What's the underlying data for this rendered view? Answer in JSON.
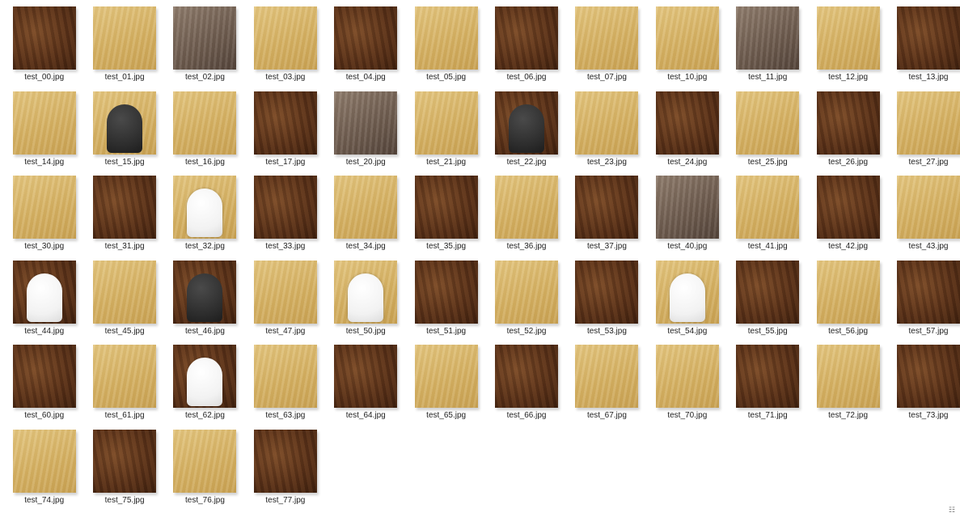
{
  "files": [
    {
      "name": "test_00.jpg",
      "tone": "dark"
    },
    {
      "name": "test_01.jpg",
      "tone": "light"
    },
    {
      "name": "test_02.jpg",
      "tone": "grey"
    },
    {
      "name": "test_03.jpg",
      "tone": "light"
    },
    {
      "name": "test_04.jpg",
      "tone": "dark"
    },
    {
      "name": "test_05.jpg",
      "tone": "light"
    },
    {
      "name": "test_06.jpg",
      "tone": "dark"
    },
    {
      "name": "test_07.jpg",
      "tone": "light"
    },
    {
      "name": "test_10.jpg",
      "tone": "light"
    },
    {
      "name": "test_11.jpg",
      "tone": "grey"
    },
    {
      "name": "test_12.jpg",
      "tone": "light"
    },
    {
      "name": "test_13.jpg",
      "tone": "dark"
    },
    {
      "name": "test_14.jpg",
      "tone": "light"
    },
    {
      "name": "test_15.jpg",
      "tone": "light",
      "piece": "black"
    },
    {
      "name": "test_16.jpg",
      "tone": "light"
    },
    {
      "name": "test_17.jpg",
      "tone": "dark"
    },
    {
      "name": "test_20.jpg",
      "tone": "grey"
    },
    {
      "name": "test_21.jpg",
      "tone": "light"
    },
    {
      "name": "test_22.jpg",
      "tone": "dark",
      "piece": "black"
    },
    {
      "name": "test_23.jpg",
      "tone": "light"
    },
    {
      "name": "test_24.jpg",
      "tone": "dark"
    },
    {
      "name": "test_25.jpg",
      "tone": "light"
    },
    {
      "name": "test_26.jpg",
      "tone": "dark"
    },
    {
      "name": "test_27.jpg",
      "tone": "light"
    },
    {
      "name": "test_30.jpg",
      "tone": "light"
    },
    {
      "name": "test_31.jpg",
      "tone": "dark"
    },
    {
      "name": "test_32.jpg",
      "tone": "light",
      "piece": "white"
    },
    {
      "name": "test_33.jpg",
      "tone": "dark"
    },
    {
      "name": "test_34.jpg",
      "tone": "light"
    },
    {
      "name": "test_35.jpg",
      "tone": "dark"
    },
    {
      "name": "test_36.jpg",
      "tone": "light"
    },
    {
      "name": "test_37.jpg",
      "tone": "dark"
    },
    {
      "name": "test_40.jpg",
      "tone": "grey"
    },
    {
      "name": "test_41.jpg",
      "tone": "light"
    },
    {
      "name": "test_42.jpg",
      "tone": "dark"
    },
    {
      "name": "test_43.jpg",
      "tone": "light"
    },
    {
      "name": "test_44.jpg",
      "tone": "dark",
      "piece": "white"
    },
    {
      "name": "test_45.jpg",
      "tone": "light"
    },
    {
      "name": "test_46.jpg",
      "tone": "dark",
      "piece": "black"
    },
    {
      "name": "test_47.jpg",
      "tone": "light"
    },
    {
      "name": "test_50.jpg",
      "tone": "light",
      "piece": "white"
    },
    {
      "name": "test_51.jpg",
      "tone": "dark"
    },
    {
      "name": "test_52.jpg",
      "tone": "light"
    },
    {
      "name": "test_53.jpg",
      "tone": "dark"
    },
    {
      "name": "test_54.jpg",
      "tone": "light",
      "piece": "white"
    },
    {
      "name": "test_55.jpg",
      "tone": "dark"
    },
    {
      "name": "test_56.jpg",
      "tone": "light"
    },
    {
      "name": "test_57.jpg",
      "tone": "dark"
    },
    {
      "name": "test_60.jpg",
      "tone": "dark"
    },
    {
      "name": "test_61.jpg",
      "tone": "light"
    },
    {
      "name": "test_62.jpg",
      "tone": "dark",
      "piece": "white"
    },
    {
      "name": "test_63.jpg",
      "tone": "light"
    },
    {
      "name": "test_64.jpg",
      "tone": "dark"
    },
    {
      "name": "test_65.jpg",
      "tone": "light"
    },
    {
      "name": "test_66.jpg",
      "tone": "dark"
    },
    {
      "name": "test_67.jpg",
      "tone": "light"
    },
    {
      "name": "test_70.jpg",
      "tone": "light"
    },
    {
      "name": "test_71.jpg",
      "tone": "dark"
    },
    {
      "name": "test_72.jpg",
      "tone": "light"
    },
    {
      "name": "test_73.jpg",
      "tone": "dark"
    },
    {
      "name": "test_74.jpg",
      "tone": "light"
    },
    {
      "name": "test_75.jpg",
      "tone": "dark"
    },
    {
      "name": "test_76.jpg",
      "tone": "light"
    },
    {
      "name": "test_77.jpg",
      "tone": "dark"
    }
  ],
  "view_toggle_icon": "details-view-icon",
  "view_toggle_glyph": "☷"
}
